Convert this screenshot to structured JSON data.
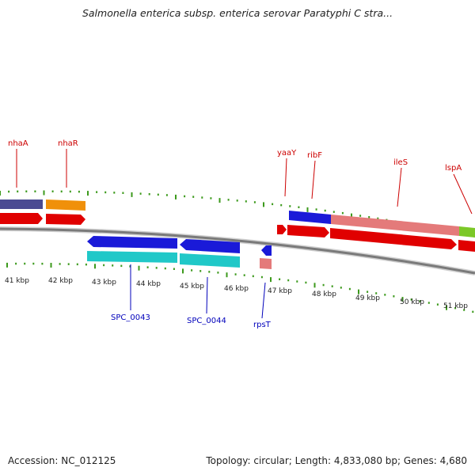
{
  "title": "Salmonella enterica subsp. enterica serovar Paratyphi C stra...",
  "footer": {
    "accession": "Accession: NC_012125",
    "summary": "Topology: circular; Length: 4,833,080 bp; Genes: 4,680"
  },
  "colors": {
    "forward_label": "#cc0000",
    "reverse_label": "#0000bb",
    "tick": "#3c9a1c",
    "backbone": "#7a7a7a",
    "cds": "#e00000",
    "gene_blue": "#1a1ad8",
    "gene_cyan": "#20c8c8",
    "gene_orange": "#f0900a",
    "gene_purple": "#4a4a92",
    "gene_pink": "#e47a7a",
    "gene_green": "#7cc828"
  },
  "scale": {
    "kbp_labels": [
      "41 kbp",
      "42 kbp",
      "43 kbp",
      "44 kbp",
      "45 kbp",
      "46 kbp",
      "47 kbp",
      "48 kbp",
      "49 kbp",
      "50 kbp",
      "51 kbp"
    ]
  },
  "forward_genes": [
    "nhaA",
    "nhaR",
    "yaaY",
    "ribF",
    "ileS",
    "lspA"
  ],
  "reverse_genes": [
    "SPC_0043",
    "SPC_0044",
    "rpsT"
  ]
}
